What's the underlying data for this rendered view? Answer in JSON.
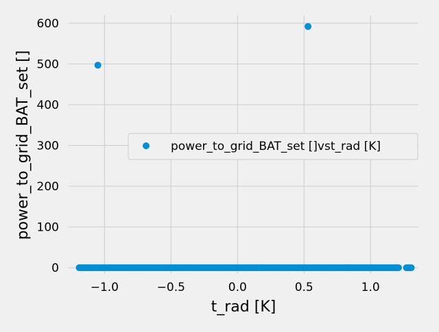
{
  "chart_data": {
    "type": "scatter",
    "title": "",
    "xlabel": "t_rad [K]",
    "ylabel": "power_to_grid_BAT_set []",
    "xlim": [
      -1.27,
      1.36
    ],
    "ylim": [
      -15,
      620
    ],
    "grid": true,
    "legend_position": "center-right",
    "xticks": [
      -1.0,
      -0.5,
      0.0,
      0.5,
      1.0
    ],
    "xtick_labels": [
      "−1.0",
      "−0.5",
      "0.0",
      "0.5",
      "1.0"
    ],
    "yticks": [
      0,
      100,
      200,
      300,
      400,
      500,
      600
    ],
    "ytick_labels": [
      "0",
      "100",
      "200",
      "300",
      "400",
      "500",
      "600"
    ],
    "series": [
      {
        "name": "power_to_grid_BAT_set []vst_rad [K]",
        "color": "#008fd5",
        "points": [
          [
            -1.05,
            497
          ],
          [
            0.53,
            592
          ]
        ],
        "dense_range": {
          "x_min": -1.19,
          "x_max": 1.31,
          "y": 0
        },
        "dense_gaps": [
          [
            1.22,
            1.27
          ]
        ]
      }
    ]
  }
}
